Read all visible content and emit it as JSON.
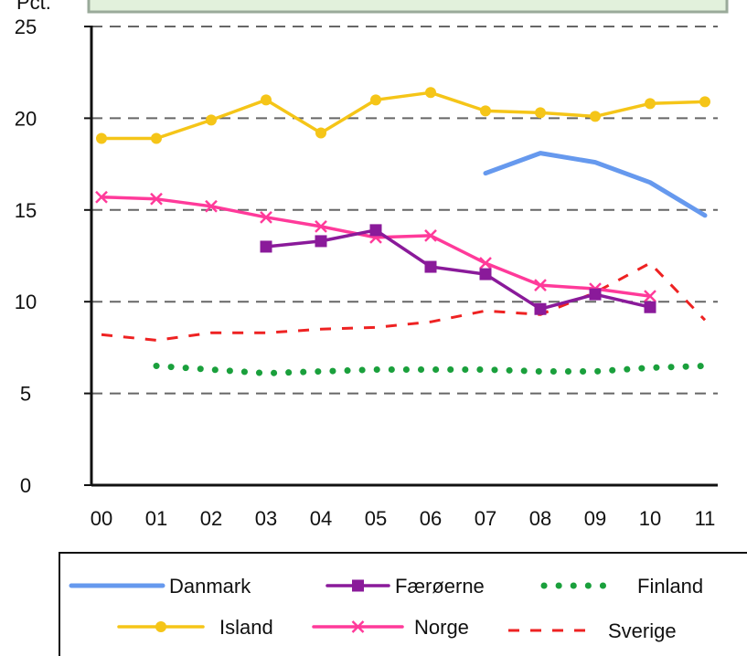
{
  "chart_data": {
    "type": "line",
    "ylabel": "Pct.",
    "ylim": [
      0,
      25
    ],
    "yticks": [
      "0",
      "5",
      "10",
      "15",
      "20",
      "25"
    ],
    "categories": [
      "00",
      "01",
      "02",
      "03",
      "04",
      "05",
      "06",
      "07",
      "08",
      "09",
      "10",
      "11"
    ],
    "grid": "horizontal dashed",
    "legend_position": "bottom",
    "series": [
      {
        "name": "Danmark",
        "color": "#6699ee",
        "style": "solid",
        "marker": "none",
        "values": [
          null,
          null,
          null,
          null,
          null,
          null,
          null,
          17.0,
          18.1,
          17.6,
          16.5,
          14.7
        ]
      },
      {
        "name": "Færøerne",
        "color": "#8a1a9a",
        "style": "solid",
        "marker": "square",
        "values": [
          null,
          null,
          null,
          13.0,
          13.3,
          13.9,
          11.9,
          11.5,
          9.6,
          10.4,
          9.7,
          null
        ]
      },
      {
        "name": "Finland",
        "color": "#1aa03c",
        "style": "dotted",
        "marker": "none",
        "values": [
          null,
          6.5,
          6.3,
          6.1,
          6.2,
          6.3,
          6.3,
          6.3,
          6.2,
          6.2,
          6.4,
          6.5
        ]
      },
      {
        "name": "Island",
        "color": "#f5c518",
        "style": "solid",
        "marker": "circle",
        "values": [
          18.9,
          18.9,
          19.9,
          21.0,
          19.2,
          21.0,
          21.4,
          20.4,
          20.3,
          20.1,
          20.8,
          20.9
        ]
      },
      {
        "name": "Norge",
        "color": "#ff3a9a",
        "style": "solid",
        "marker": "cross",
        "values": [
          15.7,
          15.6,
          15.2,
          14.6,
          14.1,
          13.5,
          13.6,
          12.1,
          10.9,
          10.7,
          10.3,
          null
        ]
      },
      {
        "name": "Sverige",
        "color": "#ee2222",
        "style": "dashed",
        "marker": "none",
        "values": [
          8.2,
          7.9,
          8.3,
          8.3,
          8.5,
          8.6,
          8.9,
          9.5,
          9.3,
          10.5,
          12.1,
          9.0
        ]
      }
    ]
  }
}
